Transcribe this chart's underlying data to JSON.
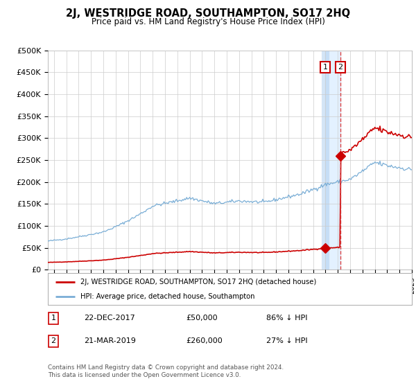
{
  "title": "2J, WESTRIDGE ROAD, SOUTHAMPTON, SO17 2HQ",
  "subtitle": "Price paid vs. HM Land Registry's House Price Index (HPI)",
  "ylim": [
    0,
    500000
  ],
  "yticks": [
    0,
    50000,
    100000,
    150000,
    200000,
    250000,
    300000,
    350000,
    400000,
    450000,
    500000
  ],
  "ytick_labels": [
    "£0",
    "£50K",
    "£100K",
    "£150K",
    "£200K",
    "£250K",
    "£300K",
    "£350K",
    "£400K",
    "£450K",
    "£500K"
  ],
  "hpi_color": "#7aaed6",
  "sale_color": "#cc0000",
  "vline1_color": "#aaccee",
  "vline2_color": "#dd4444",
  "shade_color": "#ddeeff",
  "background_color": "#ffffff",
  "grid_color": "#cccccc",
  "sale1_date": 2017.97,
  "sale1_price": 50000,
  "sale1_label": "22-DEC-2017",
  "sale1_amount": "£50,000",
  "sale1_pct": "86% ↓ HPI",
  "sale2_date": 2019.22,
  "sale2_price": 260000,
  "sale2_label": "21-MAR-2019",
  "sale2_amount": "£260,000",
  "sale2_pct": "27% ↓ HPI",
  "legend_line1": "2J, WESTRIDGE ROAD, SOUTHAMPTON, SO17 2HQ (detached house)",
  "legend_line2": "HPI: Average price, detached house, Southampton",
  "footer": "Contains HM Land Registry data © Crown copyright and database right 2024.\nThis data is licensed under the Open Government Licence v3.0.",
  "xlim_left": 1995.5,
  "xlim_right": 2025.0
}
